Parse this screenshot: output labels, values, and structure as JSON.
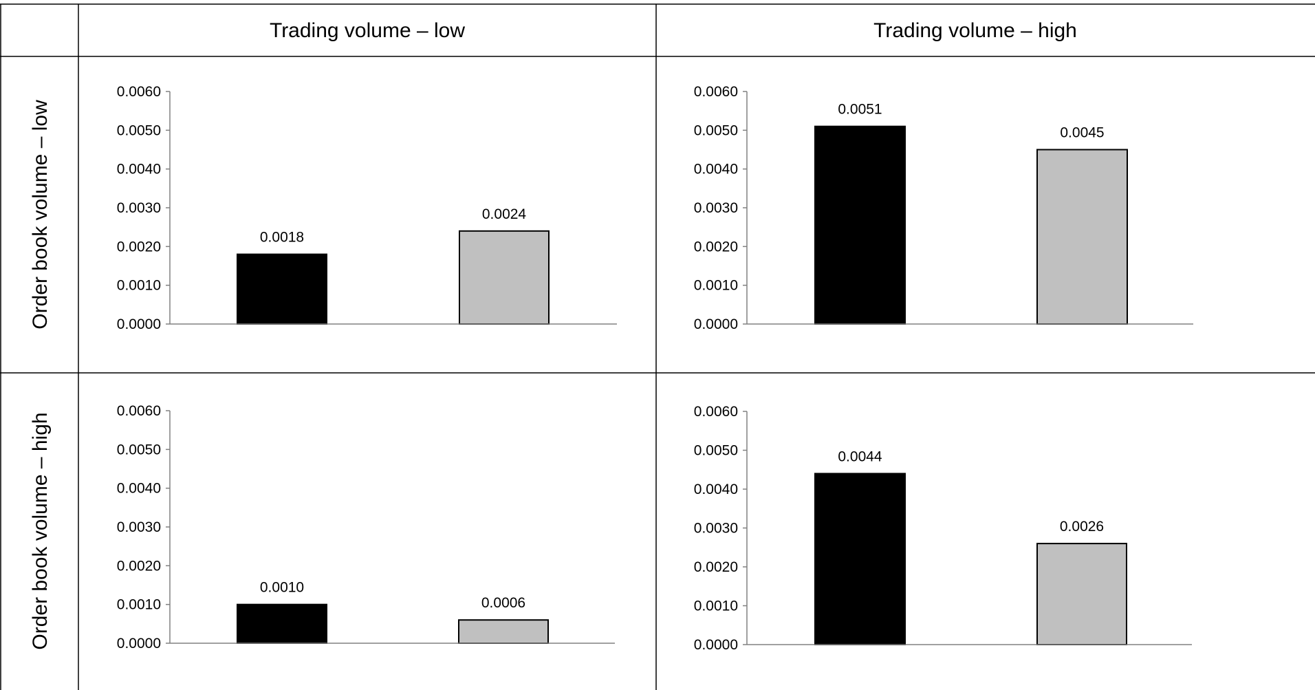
{
  "headers": {
    "col_1": "Trading volume – low",
    "col_2": "Trading volume – high",
    "row_1": "Order book volume – low",
    "row_2": "Order book volume – high"
  },
  "colors": {
    "series_1": "#000000",
    "series_2": "#c0c0c0",
    "bar_outline": "#000000",
    "axis": "#808080",
    "grid": "#000000"
  },
  "chart_data": [
    {
      "type": "bar",
      "row": "Order book volume – low",
      "column": "Trading volume – low",
      "categories": [
        "",
        ""
      ],
      "values": [
        0.0018,
        0.0024
      ],
      "data_labels": [
        "0.0018",
        "0.0024"
      ],
      "ylim": [
        0,
        0.006
      ],
      "yticks": [
        "0.0000",
        "0.0010",
        "0.0020",
        "0.0030",
        "0.0040",
        "0.0050",
        "0.0060"
      ],
      "grid": false,
      "legend": "none"
    },
    {
      "type": "bar",
      "row": "Order book volume – low",
      "column": "Trading volume – high",
      "categories": [
        "",
        ""
      ],
      "values": [
        0.0051,
        0.0045
      ],
      "data_labels": [
        "0.0051",
        "0.0045"
      ],
      "ylim": [
        0,
        0.006
      ],
      "yticks": [
        "0.0000",
        "0.0010",
        "0.0020",
        "0.0030",
        "0.0040",
        "0.0050",
        "0.0060"
      ],
      "grid": false,
      "legend": "none"
    },
    {
      "type": "bar",
      "row": "Order book volume – high",
      "column": "Trading volume – low",
      "categories": [
        "",
        ""
      ],
      "values": [
        0.001,
        0.0006
      ],
      "data_labels": [
        "0.0010",
        "0.0006"
      ],
      "ylim": [
        0,
        0.006
      ],
      "yticks": [
        "0.0000",
        "0.0010",
        "0.0020",
        "0.0030",
        "0.0040",
        "0.0050",
        "0.0060"
      ],
      "grid": false,
      "legend": "none"
    },
    {
      "type": "bar",
      "row": "Order book volume – high",
      "column": "Trading volume – high",
      "categories": [
        "",
        ""
      ],
      "values": [
        0.0044,
        0.0026
      ],
      "data_labels": [
        "0.0044",
        "0.0026"
      ],
      "ylim": [
        0,
        0.006
      ],
      "yticks": [
        "0.0000",
        "0.0010",
        "0.0020",
        "0.0030",
        "0.0040",
        "0.0050",
        "0.0060"
      ],
      "grid": false,
      "legend": "none"
    }
  ]
}
